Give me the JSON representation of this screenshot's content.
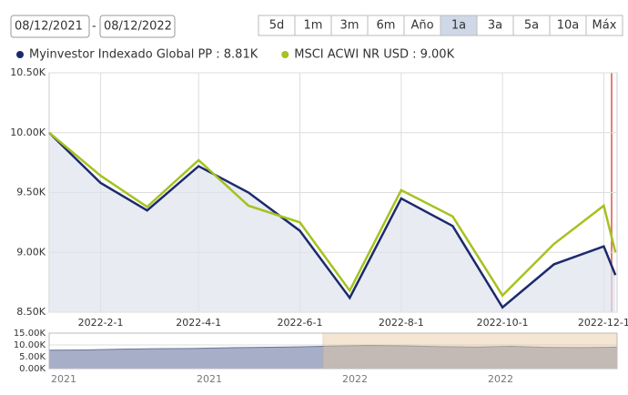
{
  "controls": {
    "date_from": "08/12/2021",
    "separator": "-",
    "date_to": "08/12/2022",
    "buttons": [
      "5d",
      "1m",
      "3m",
      "6m",
      "Año",
      "1a",
      "3a",
      "5a",
      "10a",
      "Máx"
    ],
    "selected": 5
  },
  "chart_data": {
    "type": "line",
    "x": [
      "2022-01-01",
      "2022-02-01",
      "2022-03-01",
      "2022-04-01",
      "2022-05-01",
      "2022-06-01",
      "2022-07-01",
      "2022-08-01",
      "2022-09-01",
      "2022-10-01",
      "2022-11-01",
      "2022-12-01",
      "2022-12-08"
    ],
    "series": [
      {
        "name": "Myinvestor Indexado Global PP : 8.81K",
        "color": "#1b2a6b",
        "area": true,
        "values": [
          10000,
          9580,
          9350,
          9720,
          9500,
          9180,
          8620,
          9450,
          9220,
          8540,
          8900,
          9050,
          8810
        ]
      },
      {
        "name": "MSCI ACWI NR USD : 9.00K",
        "color": "#a5c21f",
        "values": [
          10000,
          9640,
          9380,
          9770,
          9390,
          9250,
          8680,
          9520,
          9300,
          8640,
          9070,
          9390,
          9000
        ]
      }
    ],
    "xlim": [
      "2022-01-01",
      "2022-12-09"
    ],
    "xticks": [
      {
        "value": "2022-02-01",
        "label": "2022-2-1"
      },
      {
        "value": "2022-04-01",
        "label": "2022-4-1"
      },
      {
        "value": "2022-06-01",
        "label": "2022-6-1"
      },
      {
        "value": "2022-08-01",
        "label": "2022-8-1"
      },
      {
        "value": "2022-10-01",
        "label": "2022-10-1"
      },
      {
        "value": "2022-12-01",
        "label": "2022-12-1"
      }
    ],
    "ylim": [
      8500,
      10500
    ],
    "yticks": [
      {
        "value": 8500,
        "label": "8.50K"
      },
      {
        "value": 9000,
        "label": "9.00K"
      },
      {
        "value": 9500,
        "label": "9.50K"
      },
      {
        "value": 10000,
        "label": "10.00K"
      },
      {
        "value": 10500,
        "label": "10.50K"
      }
    ],
    "grid": true,
    "navigator": {
      "values": [
        7800,
        7900,
        8200,
        8400,
        8500,
        8800,
        9000,
        9200,
        9500,
        9800,
        9600,
        9300,
        9100,
        9400,
        9000,
        8900,
        9100
      ],
      "ylim": [
        0,
        15000
      ],
      "yticks": [
        {
          "value": 0,
          "label": "0.00K"
        },
        {
          "value": 5000,
          "label": "5.00K"
        },
        {
          "value": 10000,
          "label": "10.00K"
        },
        {
          "value": 15000,
          "label": "15.00K"
        }
      ],
      "xlabels": [
        "2021",
        "2021",
        "2022",
        "2022"
      ]
    }
  }
}
